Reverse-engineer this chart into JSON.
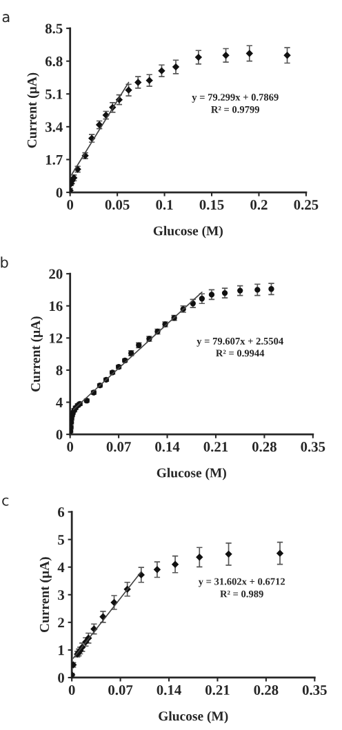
{
  "chart_data": [
    {
      "type": "scatter",
      "title": "a",
      "xlabel": "Glucose (M)",
      "ylabel": "Current (μA)",
      "xlim": [
        0,
        0.25
      ],
      "xticks": [
        0,
        0.05,
        0.1,
        0.15,
        0.2,
        0.25
      ],
      "ylim": [
        0,
        8.5
      ],
      "yticks": [
        0,
        1.7,
        3.4,
        5.1,
        6.8,
        8.5
      ],
      "grid": false,
      "annotations": [
        "y = 79.299x + 0.7869",
        "R² = 0.9799"
      ],
      "series": [
        {
          "marker": "diamond",
          "color": "#111111",
          "x": [
            0,
            0.001,
            0.002,
            0.004,
            0.008,
            0.016,
            0.023,
            0.031,
            0.038,
            0.045,
            0.052,
            0.062,
            0.072,
            0.084,
            0.097,
            0.112,
            0.136,
            0.165,
            0.19,
            0.23
          ],
          "values": [
            0.1,
            0.45,
            0.6,
            0.75,
            1.2,
            1.9,
            2.8,
            3.5,
            4.0,
            4.4,
            4.8,
            5.3,
            5.7,
            5.8,
            6.3,
            6.5,
            7.0,
            7.1,
            7.2,
            7.1
          ],
          "errors": [
            0.1,
            0.1,
            0.15,
            0.15,
            0.15,
            0.15,
            0.2,
            0.2,
            0.2,
            0.25,
            0.25,
            0.3,
            0.3,
            0.3,
            0.3,
            0.35,
            0.35,
            0.35,
            0.4,
            0.4
          ]
        },
        {
          "type": "line",
          "color": "#444444",
          "x": [
            0.002,
            0.062
          ],
          "values": [
            0.95,
            5.7
          ]
        }
      ]
    },
    {
      "type": "scatter",
      "title": "b",
      "xlabel": "Glucose (M)",
      "ylabel": "Current (μA)",
      "xlim": [
        0,
        0.35
      ],
      "xticks": [
        0,
        0.07,
        0.14,
        0.21,
        0.28,
        0.35
      ],
      "ylim": [
        0,
        20
      ],
      "yticks": [
        0,
        4,
        8,
        12,
        16,
        20
      ],
      "grid": false,
      "annotations": [
        "y = 79.607x + 2.5504",
        "R² = 0.9944"
      ],
      "series": [
        {
          "marker": "circle",
          "color": "#111111",
          "x": [
            0.0005,
            0.001,
            0.0015,
            0.002,
            0.003,
            0.004,
            0.006,
            0.008,
            0.011,
            0.014,
            0.024,
            0.034,
            0.043,
            0.052,
            0.061,
            0.07,
            0.079,
            0.088,
            0.099,
            0.114,
            0.126,
            0.137,
            0.15,
            0.163,
            0.177,
            0.19,
            0.204,
            0.223,
            0.245,
            0.27,
            0.29
          ],
          "values": [
            0.4,
            0.9,
            1.5,
            2.0,
            2.4,
            2.7,
            3.0,
            3.3,
            3.6,
            3.8,
            4.2,
            5.2,
            6.1,
            6.8,
            7.7,
            8.4,
            9.2,
            10.1,
            11.1,
            11.9,
            12.8,
            13.7,
            14.5,
            15.6,
            16.3,
            16.9,
            17.4,
            17.6,
            17.9,
            18.0,
            18.1
          ],
          "errors": [
            0.2,
            0.2,
            0.2,
            0.2,
            0.2,
            0.2,
            0.2,
            0.2,
            0.2,
            0.2,
            0.2,
            0.2,
            0.2,
            0.2,
            0.2,
            0.2,
            0.2,
            0.3,
            0.3,
            0.3,
            0.3,
            0.3,
            0.3,
            0.4,
            0.5,
            0.6,
            0.6,
            0.6,
            0.6,
            0.7,
            0.7
          ]
        },
        {
          "type": "line",
          "color": "#444444",
          "x": [
            0.005,
            0.19
          ],
          "values": [
            3.1,
            17.7
          ]
        }
      ]
    },
    {
      "type": "scatter",
      "title": "c",
      "xlabel": "Glucose (M)",
      "ylabel": "Current (μA)",
      "xlim": [
        0,
        0.35
      ],
      "xticks": [
        0,
        0.07,
        0.14,
        0.21,
        0.28,
        0.35
      ],
      "ylim": [
        0,
        6
      ],
      "yticks": [
        0,
        1,
        2,
        3,
        4,
        5,
        6
      ],
      "grid": false,
      "annotations": [
        "y = 31.602x + 0.6712",
        "R² = 0.989"
      ],
      "series": [
        {
          "marker": "diamond",
          "color": "#111111",
          "x": [
            0,
            0.002,
            0.008,
            0.01,
            0.012,
            0.015,
            0.02,
            0.024,
            0.032,
            0.045,
            0.061,
            0.08,
            0.1,
            0.123,
            0.149,
            0.184,
            0.226,
            0.3
          ],
          "values": [
            0.1,
            0.46,
            0.85,
            0.91,
            0.98,
            1.1,
            1.29,
            1.43,
            1.76,
            2.2,
            2.72,
            3.2,
            3.72,
            3.91,
            4.1,
            4.36,
            4.47,
            4.5
          ],
          "errors": [
            0.05,
            0.08,
            0.1,
            0.12,
            0.12,
            0.15,
            0.15,
            0.18,
            0.18,
            0.2,
            0.25,
            0.25,
            0.27,
            0.28,
            0.3,
            0.35,
            0.4,
            0.4
          ]
        },
        {
          "type": "line",
          "color": "#444444",
          "x": [
            0.002,
            0.1
          ],
          "values": [
            0.7,
            3.83
          ]
        }
      ]
    }
  ]
}
